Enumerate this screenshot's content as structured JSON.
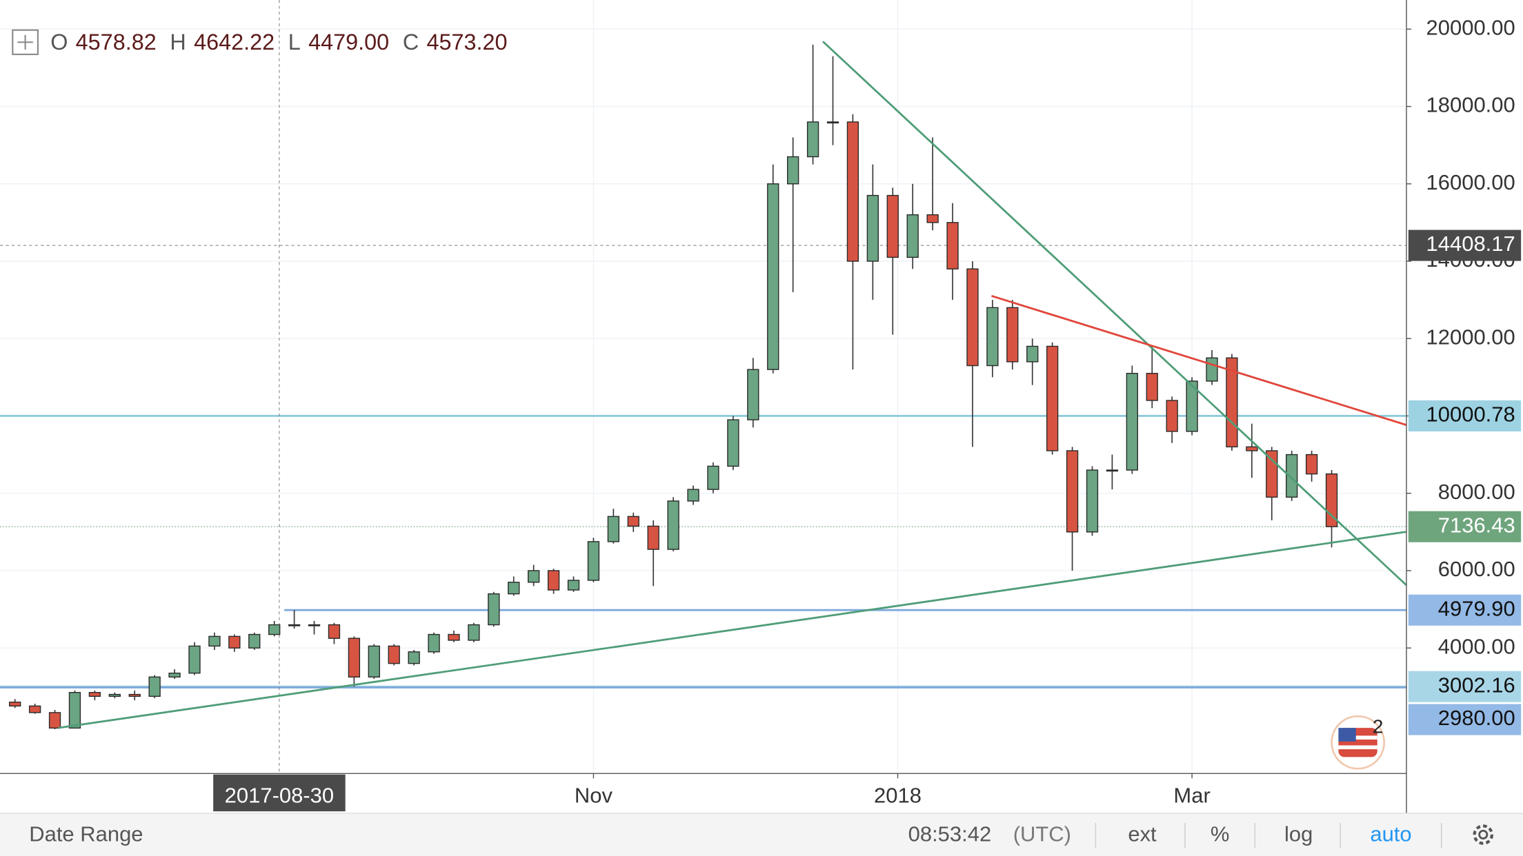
{
  "chart_data": {
    "type": "candlestick",
    "open": [
      2600,
      2500,
      2330,
      1930,
      2850,
      2750,
      2800,
      2750,
      3250,
      3350,
      4050,
      4300,
      4000,
      4350,
      4600,
      4600,
      4600,
      4250,
      3250,
      4050,
      3600,
      3900,
      4350,
      4200,
      4600,
      5400,
      5700,
      6000,
      5500,
      5750,
      6750,
      7400,
      7150,
      6550,
      7800,
      8100,
      8700,
      9900,
      11200,
      16000,
      16700,
      17600,
      17600,
      14000,
      15700,
      14100,
      15200,
      15000,
      13800,
      11300,
      12800,
      11400,
      11800,
      9100,
      7000,
      8600,
      8600,
      11100,
      10400,
      9600,
      10900,
      11500,
      9200,
      9100,
      7900,
      9000,
      8500
    ],
    "high": [
      2680,
      2560,
      2400,
      2900,
      2900,
      2850,
      2900,
      3300,
      3450,
      4150,
      4400,
      4350,
      4400,
      4700,
      4980,
      4700,
      4650,
      4300,
      4100,
      4100,
      3950,
      4400,
      4450,
      4650,
      5450,
      5850,
      6150,
      6050,
      5850,
      6850,
      7600,
      7500,
      7300,
      7900,
      8200,
      8800,
      10000,
      11500,
      16500,
      17200,
      19600,
      19300,
      17800,
      16500,
      15900,
      16000,
      17200,
      15500,
      14000,
      13000,
      13000,
      12000,
      11900,
      9200,
      8700,
      9000,
      11300,
      11800,
      10500,
      11000,
      11700,
      11600,
      9800,
      9200,
      9100,
      9100,
      8600
    ],
    "low": [
      2450,
      2300,
      1900,
      1920,
      2650,
      2700,
      2650,
      2700,
      3200,
      3300,
      3950,
      3900,
      3950,
      4300,
      4500,
      4350,
      4100,
      3000,
      3200,
      3550,
      3550,
      3850,
      4150,
      4150,
      4550,
      5350,
      5600,
      5400,
      5450,
      5700,
      6700,
      7000,
      5600,
      6500,
      7700,
      8000,
      8600,
      9700,
      11100,
      13200,
      16500,
      17000,
      11200,
      13000,
      12100,
      13800,
      14800,
      13000,
      9200,
      11000,
      11200,
      10800,
      9000,
      6000,
      6900,
      8100,
      8500,
      10200,
      9300,
      9500,
      10800,
      9100,
      8400,
      7300,
      7800,
      8300,
      6600
    ],
    "close": [
      2500,
      2330,
      1930,
      2850,
      2750,
      2800,
      2750,
      3250,
      3350,
      4050,
      4300,
      4000,
      4350,
      4600,
      4600,
      4600,
      4250,
      3250,
      4050,
      3600,
      3900,
      4350,
      4200,
      4600,
      5400,
      5700,
      6000,
      5500,
      5750,
      6750,
      7400,
      7150,
      6550,
      7800,
      8100,
      8700,
      9900,
      11200,
      16000,
      16700,
      17600,
      17600,
      14000,
      15700,
      14100,
      15200,
      15000,
      13800,
      11300,
      12800,
      11400,
      11800,
      9100,
      7000,
      8600,
      8600,
      11100,
      10400,
      9600,
      10900,
      11500,
      9200,
      9100,
      7900,
      9000,
      8500,
      7136.43
    ],
    "up_color": "#6ba583",
    "down_color": "#d75442",
    "wick_color": "#3a3a3a",
    "xlim": [
      -0.75,
      69.75
    ],
    "xticks": [
      {
        "value": 29,
        "label": "Nov"
      },
      {
        "value": 44.25,
        "label": "2018"
      },
      {
        "value": 59,
        "label": "Mar"
      }
    ],
    "ylim": [
      755,
      20753
    ],
    "yticks": [
      {
        "value": 4000,
        "label": "4000.00"
      },
      {
        "value": 6000,
        "label": "6000.00"
      },
      {
        "value": 8000,
        "label": "8000.00"
      },
      {
        "value": 10000,
        "label": "10000.00"
      },
      {
        "value": 12000,
        "label": "12000.00"
      },
      {
        "value": 14000,
        "label": "14000.00"
      },
      {
        "value": 16000,
        "label": "16000.00"
      },
      {
        "value": 18000,
        "label": "18000.00"
      },
      {
        "value": 20000,
        "label": "20000.00"
      }
    ],
    "grid": true,
    "crosshair": {
      "x": {
        "value": 13.25,
        "label": "2017-08-30"
      },
      "y": {
        "value": 14408.17,
        "label": "14408.17"
      }
    },
    "last_price": {
      "value": 7136.43,
      "label": "7136.43",
      "color": "#6fa57d"
    },
    "hlines": [
      {
        "value": 10000.78,
        "label": "10000.78",
        "color": "#8ccbdc",
        "from": -0.75
      },
      {
        "value": 4979.9,
        "label": "4979.90",
        "color": "#7ea9dc",
        "from": 13.5
      },
      {
        "value": 3002.16,
        "label": "3002.16",
        "color": "#9fd0e2",
        "from": -0.75
      },
      {
        "value": 2980,
        "label": "2980.00",
        "color": "#7ea9dc",
        "from": -0.75
      }
    ],
    "trendlines": [
      {
        "x": [
          2.17,
          69.75
        ],
        "y": [
          1934,
          7004
        ],
        "color": "#4f9d78"
      },
      {
        "x": [
          40.5,
          69.75
        ],
        "y": [
          19680,
          5623
        ],
        "color": "#4f9d78"
      },
      {
        "x": [
          48.95,
          69.75
        ],
        "y": [
          13103,
          9765
        ],
        "color": "#e0463a"
      }
    ]
  },
  "header": {
    "ohlc": [
      {
        "key": "O",
        "value": "4578.82"
      },
      {
        "key": "H",
        "value": "4642.22"
      },
      {
        "key": "L",
        "value": "4479.00"
      },
      {
        "key": "C",
        "value": "4573.20"
      }
    ]
  },
  "alerts_badge": "2",
  "toolbar": {
    "date_range": "Date Range",
    "time": "08:53:42",
    "timezone": "(UTC)",
    "buttons": [
      "ext",
      "%",
      "log",
      "auto"
    ]
  }
}
